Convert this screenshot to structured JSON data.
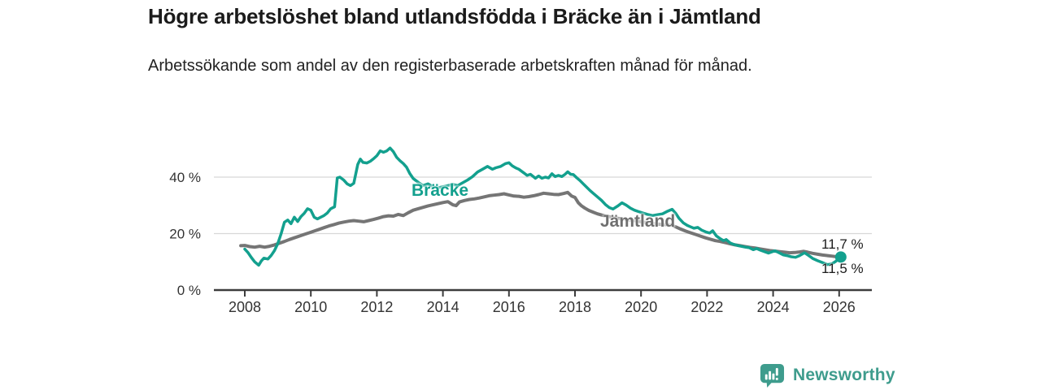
{
  "chart_data": {
    "type": "line",
    "title": "Högre arbetslöshet bland utlandsfödda i Bräcke än i Jämtland",
    "subtitle": "Arbetssökande som andel av den registerbaserade arbetskraften månad för månad.",
    "unit": "%",
    "xlim": [
      2007.05,
      2027.0
    ],
    "ylim": [
      0,
      52
    ],
    "grid": "horizontal",
    "legend_position": "inline-labels",
    "x_ticks": [
      2008,
      2010,
      2012,
      2014,
      2016,
      2018,
      2020,
      2022,
      2024,
      2026
    ],
    "y_ticks": [
      {
        "value": 0,
        "label": "0 %"
      },
      {
        "value": 20,
        "label": "20 %"
      },
      {
        "value": 40,
        "label": "40 %"
      }
    ],
    "series": [
      {
        "name": "Jämtland",
        "color": "#757575",
        "latest_label": "11,5 %",
        "latest_value": 11.5,
        "points": [
          [
            2007.88,
            15.7
          ],
          [
            2008.0,
            15.8
          ],
          [
            2008.15,
            15.4
          ],
          [
            2008.3,
            15.2
          ],
          [
            2008.45,
            15.5
          ],
          [
            2008.6,
            15.2
          ],
          [
            2008.75,
            15.5
          ],
          [
            2008.9,
            16.0
          ],
          [
            2009.05,
            16.6
          ],
          [
            2009.2,
            17.2
          ],
          [
            2009.35,
            17.9
          ],
          [
            2009.5,
            18.5
          ],
          [
            2009.65,
            19.1
          ],
          [
            2009.8,
            19.7
          ],
          [
            2009.95,
            20.3
          ],
          [
            2010.1,
            20.9
          ],
          [
            2010.25,
            21.5
          ],
          [
            2010.4,
            22.1
          ],
          [
            2010.55,
            22.7
          ],
          [
            2010.7,
            23.2
          ],
          [
            2010.85,
            23.7
          ],
          [
            2011.0,
            24.1
          ],
          [
            2011.15,
            24.4
          ],
          [
            2011.3,
            24.6
          ],
          [
            2011.45,
            24.4
          ],
          [
            2011.6,
            24.2
          ],
          [
            2011.75,
            24.6
          ],
          [
            2011.9,
            25.0
          ],
          [
            2012.05,
            25.5
          ],
          [
            2012.2,
            26.0
          ],
          [
            2012.35,
            26.3
          ],
          [
            2012.5,
            26.2
          ],
          [
            2012.65,
            26.8
          ],
          [
            2012.8,
            26.4
          ],
          [
            2012.95,
            27.4
          ],
          [
            2013.1,
            28.3
          ],
          [
            2013.25,
            28.8
          ],
          [
            2013.4,
            29.3
          ],
          [
            2013.55,
            29.8
          ],
          [
            2013.7,
            30.2
          ],
          [
            2013.85,
            30.6
          ],
          [
            2014.0,
            31.0
          ],
          [
            2014.15,
            31.3
          ],
          [
            2014.3,
            30.2
          ],
          [
            2014.4,
            29.9
          ],
          [
            2014.5,
            31.2
          ],
          [
            2014.65,
            31.7
          ],
          [
            2014.8,
            32.1
          ],
          [
            2014.95,
            32.3
          ],
          [
            2015.1,
            32.6
          ],
          [
            2015.25,
            33.0
          ],
          [
            2015.4,
            33.4
          ],
          [
            2015.55,
            33.6
          ],
          [
            2015.7,
            33.8
          ],
          [
            2015.85,
            34.1
          ],
          [
            2016.0,
            33.7
          ],
          [
            2016.15,
            33.3
          ],
          [
            2016.3,
            33.2
          ],
          [
            2016.45,
            32.9
          ],
          [
            2016.6,
            33.1
          ],
          [
            2016.75,
            33.4
          ],
          [
            2016.9,
            33.8
          ],
          [
            2017.05,
            34.3
          ],
          [
            2017.2,
            34.1
          ],
          [
            2017.35,
            33.9
          ],
          [
            2017.5,
            33.8
          ],
          [
            2017.65,
            34.2
          ],
          [
            2017.78,
            34.6
          ],
          [
            2017.9,
            33.3
          ],
          [
            2018.0,
            32.8
          ],
          [
            2018.1,
            30.9
          ],
          [
            2018.2,
            29.8
          ],
          [
            2018.3,
            29.0
          ],
          [
            2018.42,
            28.2
          ],
          [
            2018.55,
            27.6
          ],
          [
            2018.68,
            27.0
          ],
          [
            2018.8,
            26.6
          ],
          [
            2018.95,
            26.2
          ],
          [
            2019.1,
            25.8
          ],
          [
            2019.3,
            25.4
          ],
          [
            2019.5,
            25.0
          ],
          [
            2019.7,
            24.7
          ],
          [
            2019.9,
            24.4
          ],
          [
            2020.1,
            24.0
          ],
          [
            2020.3,
            23.7
          ],
          [
            2020.5,
            23.4
          ],
          [
            2020.7,
            23.2
          ],
          [
            2020.9,
            23.1
          ],
          [
            2021.05,
            22.4
          ],
          [
            2021.2,
            21.6
          ],
          [
            2021.35,
            20.9
          ],
          [
            2021.5,
            20.3
          ],
          [
            2021.65,
            19.7
          ],
          [
            2021.8,
            19.1
          ],
          [
            2021.95,
            18.5
          ],
          [
            2022.1,
            18.0
          ],
          [
            2022.25,
            17.5
          ],
          [
            2022.4,
            17.2
          ],
          [
            2022.55,
            16.8
          ],
          [
            2022.7,
            16.4
          ],
          [
            2022.85,
            16.0
          ],
          [
            2023.0,
            15.7
          ],
          [
            2023.15,
            15.4
          ],
          [
            2023.3,
            15.1
          ],
          [
            2023.45,
            14.9
          ],
          [
            2023.6,
            14.6
          ],
          [
            2023.75,
            14.3
          ],
          [
            2023.9,
            14.0
          ],
          [
            2024.05,
            13.8
          ],
          [
            2024.2,
            13.6
          ],
          [
            2024.35,
            13.4
          ],
          [
            2024.5,
            13.2
          ],
          [
            2024.65,
            13.3
          ],
          [
            2024.8,
            13.5
          ],
          [
            2024.92,
            13.7
          ],
          [
            2025.05,
            13.4
          ],
          [
            2025.2,
            13.0
          ],
          [
            2025.35,
            12.7
          ],
          [
            2025.5,
            12.4
          ],
          [
            2025.65,
            12.2
          ],
          [
            2025.8,
            12.0
          ],
          [
            2025.92,
            11.8
          ],
          [
            2026.05,
            11.5
          ]
        ]
      },
      {
        "name": "Bräcke",
        "color": "#13A08E",
        "latest_label": "11,7 %",
        "latest_value": 11.7,
        "points": [
          [
            2008.0,
            14.5
          ],
          [
            2008.1,
            13.2
          ],
          [
            2008.2,
            11.5
          ],
          [
            2008.3,
            10.0
          ],
          [
            2008.42,
            8.8
          ],
          [
            2008.5,
            10.3
          ],
          [
            2008.58,
            11.3
          ],
          [
            2008.7,
            11.0
          ],
          [
            2008.8,
            12.3
          ],
          [
            2008.9,
            14.0
          ],
          [
            2009.0,
            16.5
          ],
          [
            2009.1,
            20.0
          ],
          [
            2009.2,
            24.0
          ],
          [
            2009.3,
            24.8
          ],
          [
            2009.4,
            23.5
          ],
          [
            2009.5,
            25.8
          ],
          [
            2009.6,
            24.3
          ],
          [
            2009.7,
            26.0
          ],
          [
            2009.8,
            27.2
          ],
          [
            2009.9,
            28.8
          ],
          [
            2010.0,
            28.3
          ],
          [
            2010.1,
            25.8
          ],
          [
            2010.2,
            25.2
          ],
          [
            2010.3,
            25.8
          ],
          [
            2010.4,
            26.4
          ],
          [
            2010.5,
            27.3
          ],
          [
            2010.6,
            28.8
          ],
          [
            2010.72,
            29.5
          ],
          [
            2010.8,
            39.7
          ],
          [
            2010.88,
            40.0
          ],
          [
            2011.0,
            38.9
          ],
          [
            2011.1,
            37.6
          ],
          [
            2011.2,
            37.0
          ],
          [
            2011.3,
            37.8
          ],
          [
            2011.42,
            44.5
          ],
          [
            2011.5,
            46.4
          ],
          [
            2011.58,
            45.2
          ],
          [
            2011.7,
            45.0
          ],
          [
            2011.8,
            45.6
          ],
          [
            2011.9,
            46.5
          ],
          [
            2012.0,
            47.6
          ],
          [
            2012.1,
            49.3
          ],
          [
            2012.2,
            48.8
          ],
          [
            2012.3,
            49.3
          ],
          [
            2012.4,
            50.3
          ],
          [
            2012.5,
            49.0
          ],
          [
            2012.6,
            47.0
          ],
          [
            2012.7,
            45.8
          ],
          [
            2012.8,
            44.8
          ],
          [
            2012.9,
            43.5
          ],
          [
            2013.0,
            41.2
          ],
          [
            2013.1,
            39.5
          ],
          [
            2013.25,
            38.2
          ],
          [
            2013.4,
            37.0
          ],
          [
            2013.55,
            37.6
          ],
          [
            2013.7,
            36.6
          ],
          [
            2013.85,
            36.2
          ],
          [
            2014.0,
            36.6
          ],
          [
            2014.15,
            37.0
          ],
          [
            2014.3,
            37.4
          ],
          [
            2014.45,
            37.0
          ],
          [
            2014.6,
            38.0
          ],
          [
            2014.75,
            39.0
          ],
          [
            2014.9,
            40.2
          ],
          [
            2015.05,
            41.8
          ],
          [
            2015.2,
            42.8
          ],
          [
            2015.35,
            43.8
          ],
          [
            2015.5,
            42.8
          ],
          [
            2015.6,
            43.3
          ],
          [
            2015.75,
            43.8
          ],
          [
            2015.9,
            44.8
          ],
          [
            2016.0,
            45.1
          ],
          [
            2016.1,
            44.0
          ],
          [
            2016.2,
            43.3
          ],
          [
            2016.3,
            42.8
          ],
          [
            2016.45,
            41.5
          ],
          [
            2016.55,
            40.6
          ],
          [
            2016.65,
            41.0
          ],
          [
            2016.8,
            39.6
          ],
          [
            2016.9,
            40.4
          ],
          [
            2017.0,
            39.6
          ],
          [
            2017.1,
            40.0
          ],
          [
            2017.2,
            39.7
          ],
          [
            2017.3,
            41.2
          ],
          [
            2017.4,
            40.2
          ],
          [
            2017.5,
            40.6
          ],
          [
            2017.6,
            40.2
          ],
          [
            2017.7,
            41.0
          ],
          [
            2017.78,
            41.9
          ],
          [
            2017.87,
            41.0
          ],
          [
            2017.95,
            40.9
          ],
          [
            2018.05,
            39.8
          ],
          [
            2018.15,
            38.8
          ],
          [
            2018.25,
            37.6
          ],
          [
            2018.35,
            36.5
          ],
          [
            2018.45,
            35.3
          ],
          [
            2018.55,
            34.3
          ],
          [
            2018.68,
            33.0
          ],
          [
            2018.8,
            31.8
          ],
          [
            2018.92,
            30.3
          ],
          [
            2019.04,
            29.2
          ],
          [
            2019.15,
            28.7
          ],
          [
            2019.3,
            29.8
          ],
          [
            2019.42,
            30.9
          ],
          [
            2019.55,
            30.1
          ],
          [
            2019.68,
            29.0
          ],
          [
            2019.8,
            28.3
          ],
          [
            2019.92,
            27.8
          ],
          [
            2020.05,
            27.3
          ],
          [
            2020.2,
            26.8
          ],
          [
            2020.35,
            26.4
          ],
          [
            2020.5,
            26.7
          ],
          [
            2020.65,
            27.0
          ],
          [
            2020.78,
            27.8
          ],
          [
            2020.94,
            28.6
          ],
          [
            2021.05,
            27.2
          ],
          [
            2021.15,
            25.4
          ],
          [
            2021.28,
            23.8
          ],
          [
            2021.4,
            22.9
          ],
          [
            2021.5,
            22.4
          ],
          [
            2021.6,
            21.9
          ],
          [
            2021.72,
            22.2
          ],
          [
            2021.84,
            21.2
          ],
          [
            2021.96,
            20.6
          ],
          [
            2022.08,
            20.2
          ],
          [
            2022.17,
            21.0
          ],
          [
            2022.28,
            19.2
          ],
          [
            2022.4,
            18.2
          ],
          [
            2022.5,
            17.5
          ],
          [
            2022.58,
            17.9
          ],
          [
            2022.7,
            16.7
          ],
          [
            2022.8,
            16.2
          ],
          [
            2022.92,
            15.8
          ],
          [
            2023.04,
            15.5
          ],
          [
            2023.16,
            15.2
          ],
          [
            2023.28,
            15.0
          ],
          [
            2023.4,
            14.3
          ],
          [
            2023.5,
            14.7
          ],
          [
            2023.62,
            14.1
          ],
          [
            2023.74,
            13.6
          ],
          [
            2023.86,
            13.1
          ],
          [
            2023.98,
            13.6
          ],
          [
            2024.06,
            13.9
          ],
          [
            2024.18,
            13.2
          ],
          [
            2024.3,
            12.5
          ],
          [
            2024.42,
            12.2
          ],
          [
            2024.55,
            11.8
          ],
          [
            2024.68,
            11.6
          ],
          [
            2024.8,
            12.2
          ],
          [
            2024.95,
            13.2
          ],
          [
            2025.08,
            12.2
          ],
          [
            2025.2,
            11.2
          ],
          [
            2025.35,
            10.4
          ],
          [
            2025.5,
            9.7
          ],
          [
            2025.65,
            9.0
          ],
          [
            2025.78,
            9.3
          ],
          [
            2025.9,
            10.2
          ],
          [
            2026.05,
            11.7
          ]
        ]
      }
    ],
    "end_dot": {
      "series": "Bräcke",
      "x": 2026.05,
      "y": 11.7
    }
  },
  "footer": {
    "brand": "Newsworthy"
  }
}
